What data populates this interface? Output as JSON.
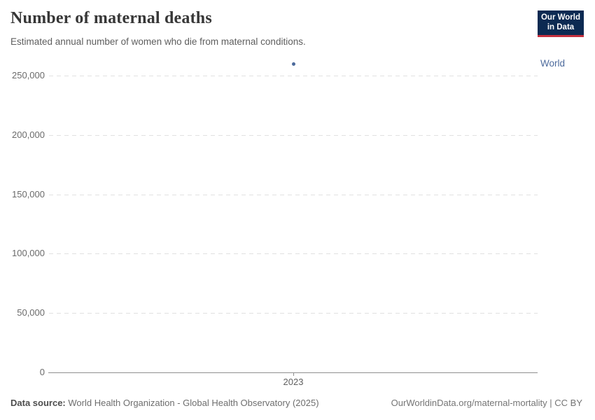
{
  "header": {
    "title": "Number of maternal deaths",
    "subtitle": "Estimated annual number of women who die from maternal conditions."
  },
  "logo": {
    "line1": "Our World",
    "line2": "in Data",
    "bg_color": "#0C2A52",
    "stripe_color": "#C5303E"
  },
  "chart_data": {
    "type": "scatter",
    "title": "Number of maternal deaths",
    "subtitle": "Estimated annual number of women who die from maternal conditions.",
    "series": [
      {
        "name": "World",
        "color": "#4C6A9C",
        "points": [
          {
            "x": 2023,
            "y": 260000
          }
        ]
      }
    ],
    "xlabel": "",
    "ylabel": "",
    "xticks": [
      2023
    ],
    "xtick_labels": [
      "2023"
    ],
    "yticks": [
      0,
      50000,
      100000,
      150000,
      200000,
      250000
    ],
    "ytick_labels": [
      "0",
      "50,000",
      "100,000",
      "150,000",
      "200,000",
      "250,000"
    ],
    "ylim": [
      0,
      265000
    ],
    "grid": "horizontal-dashed",
    "legend_position": "right-of-plot"
  },
  "footer": {
    "datasource_label": "Data source:",
    "datasource_value": "World Health Organization - Global Health Observatory (2025)",
    "credit": "OurWorldinData.org/maternal-mortality | CC BY"
  },
  "colors": {
    "accent": "#4C6A9C",
    "title_text": "#373737",
    "gridline": "#e1e1e1",
    "axis": "#8f8f8f"
  }
}
